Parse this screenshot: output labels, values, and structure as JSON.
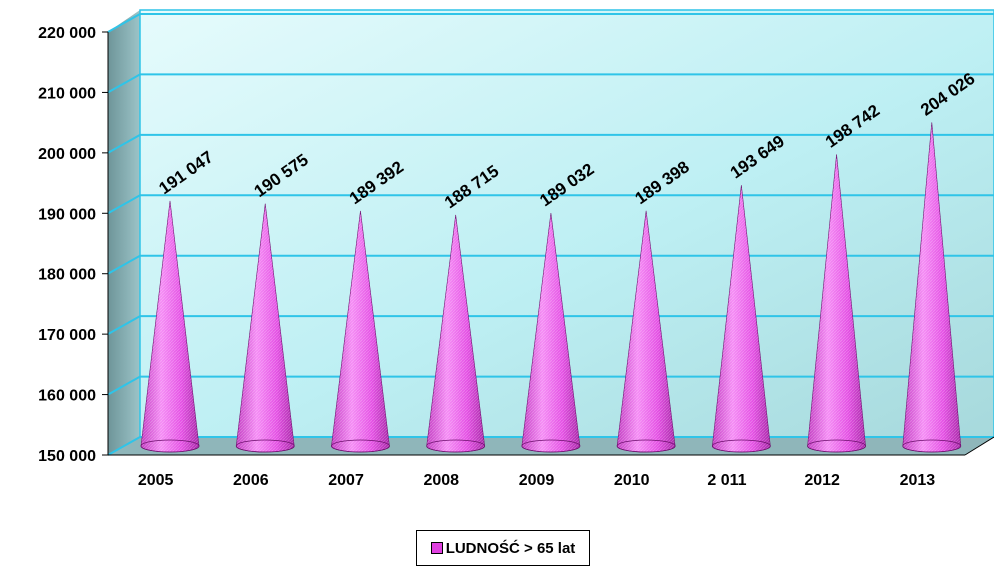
{
  "chart_data": {
    "type": "bar",
    "bar_shape": "cone",
    "categories": [
      "2005",
      "2006",
      "2007",
      "2008",
      "2009",
      "2010",
      "2 011",
      "2012",
      "2013"
    ],
    "series": [
      {
        "name": "LUDNOŚĆ > 65 lat",
        "values": [
          191047,
          190575,
          189392,
          188715,
          189032,
          189398,
          193649,
          198742,
          204026
        ],
        "labels": [
          "191 047",
          "190 575",
          "189 392",
          "188 715",
          "189 032",
          "189 398",
          "193 649",
          "198 742",
          "204 026"
        ],
        "color": "#e040e0"
      }
    ],
    "ylim": [
      150000,
      220000
    ],
    "yticks": [
      "150 000",
      "160 000",
      "170 000",
      "180 000",
      "190 000",
      "200 000",
      "210 000",
      "220 000"
    ],
    "grid": true,
    "legend_position": "bottom",
    "colors": {
      "wall": "#b8ecf0",
      "grid": "#2fc4e8",
      "side_wall": "#7aa8ad"
    }
  }
}
